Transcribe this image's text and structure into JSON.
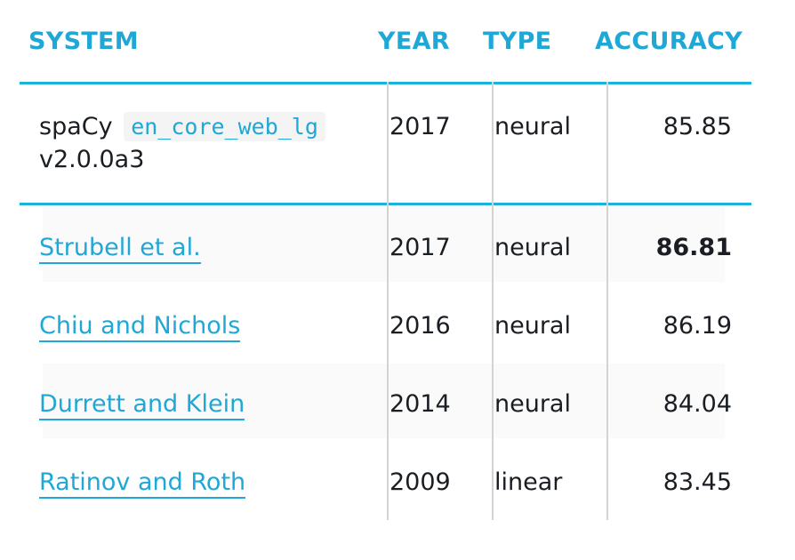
{
  "headers": {
    "system": "SYSTEM",
    "year": "YEAR",
    "type": "TYPE",
    "accuracy": "ACCURACY"
  },
  "spacy_row": {
    "name": "spaCy",
    "model": "en_core_web_lg",
    "version": "v2.0.0a3",
    "year": "2017",
    "type": "neural",
    "accuracy": "85.85"
  },
  "rows": [
    {
      "system": "Strubell et al.",
      "year": "2017",
      "type": "neural",
      "accuracy": "86.81"
    },
    {
      "system": "Chiu and Nichols",
      "year": "2016",
      "type": "neural",
      "accuracy": "86.19"
    },
    {
      "system": "Durrett and Klein",
      "year": "2014",
      "type": "neural",
      "accuracy": "84.04"
    },
    {
      "system": "Ratinov and Roth",
      "year": "2009",
      "type": "linear",
      "accuracy": "83.45"
    }
  ],
  "colors": {
    "accent": "#1fa7d6",
    "divider": "#1bb3dc",
    "text": "#1a1e23",
    "grid": "#d3d3d3"
  }
}
